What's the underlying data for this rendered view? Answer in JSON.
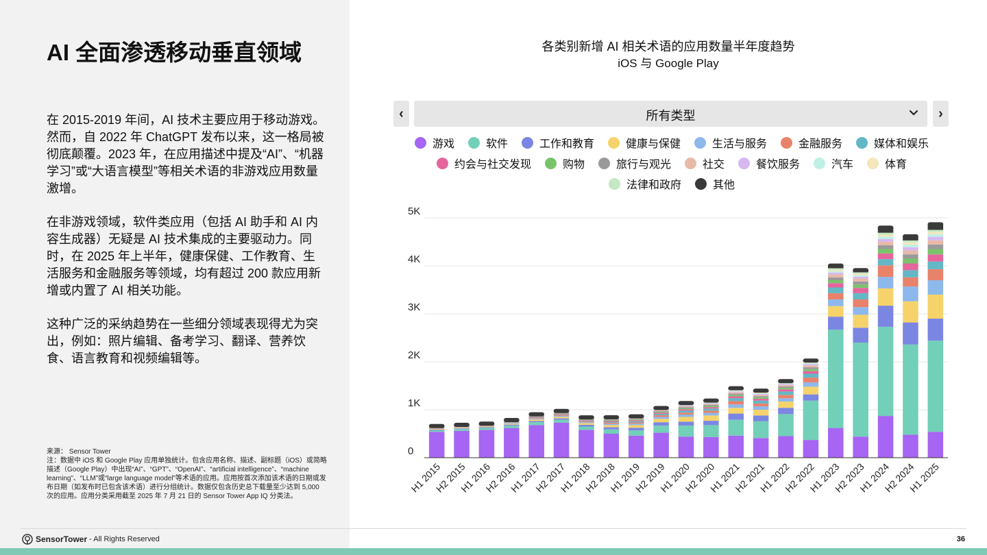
{
  "page": {
    "title": "AI 全面渗透移动垂直领域",
    "paragraphs": [
      "在 2015-2019 年间，AI 技术主要应用于移动游戏。然而，自 2022 年 ChatGPT 发布以来，这一格局被彻底颠覆。2023 年，在应用描述中提及“AI”、“机器学习”或“大语言模型”等相关术语的非游戏应用数量激增。",
      "在非游戏领域，软件类应用（包括 AI 助手和 AI 内容生成器）无疑是 AI 技术集成的主要驱动力。同时，在 2025 年上半年，健康保健、工作教育、生活服务和金融服务等领域，均有超过 200 款应用新增或内置了 AI 相关功能。",
      "这种广泛的采纳趋势在一些细分领域表现得尤为突出，例如：照片编辑、备考学习、翻译、营养饮食、语言教育和视频编辑等。"
    ],
    "source": "来源： Sensor Tower",
    "note": "注：数据中 iOS 和 Google Play 应用单独统计。包含应用名称、描述、副标题（iOS）或简略描述（Google Play）中出现“AI”、“GPT”、“OpenAI”、“artificial intelligence”、“machine learning”、“LLM”或“large language model”等术语的应用。应用按首次添加该术语的日期或发布日期（如发布时已包含该术语）进行分组统计。数据仅包含历史总下载量至少达到 5,000 次的应用。应用分类采用截至 2025 年 7 月 21 日的 Sensor Tower App IQ 分类法。"
  },
  "footer": {
    "brand": "SensorTower",
    "rights": "- All Rights Reserved",
    "page_number": "36"
  },
  "chart_controls": {
    "selected_category": "所有类型",
    "prev_label": "‹",
    "next_label": "›"
  },
  "colors": {
    "accent": "#7fc9b5",
    "axis": "#333333",
    "grid": "#e6e6e6"
  },
  "chart_data": {
    "type": "bar",
    "stacked": true,
    "title": "各类别新增 AI 相关术语的应用数量半年度趋势",
    "subtitle": "iOS 与 Google Play",
    "xlabel": "",
    "ylabel": "",
    "ylim": [
      0,
      5000
    ],
    "yticks": [
      0,
      1000,
      2000,
      3000,
      4000,
      5000
    ],
    "ytick_labels": [
      "0",
      "1K",
      "2K",
      "3K",
      "4K",
      "5K"
    ],
    "grid": true,
    "legend_position": "top",
    "categories": [
      "H1 2015",
      "H2 2015",
      "H1 2016",
      "H2 2016",
      "H1 2017",
      "H2 2017",
      "H1 2018",
      "H2 2018",
      "H1 2019",
      "H2 2019",
      "H1 2020",
      "H2 2020",
      "H1 2021",
      "H2 2021",
      "H1 2022",
      "H2 2022",
      "H1 2023",
      "H2 2023",
      "H1 2024",
      "H2 2024",
      "H1 2025"
    ],
    "series": [
      {
        "name": "游戏",
        "color": "#a665f2",
        "values": [
          540,
          560,
          580,
          620,
          680,
          730,
          580,
          500,
          460,
          520,
          440,
          430,
          460,
          410,
          450,
          370,
          620,
          440,
          870,
          480,
          540
        ]
      },
      {
        "name": "软件",
        "color": "#72cfb8",
        "values": [
          30,
          35,
          40,
          50,
          60,
          60,
          70,
          90,
          110,
          150,
          230,
          250,
          330,
          350,
          460,
          820,
          2050,
          1960,
          1860,
          1880,
          1900
        ]
      },
      {
        "name": "工作和教育",
        "color": "#7b86e2",
        "values": [
          15,
          15,
          15,
          20,
          25,
          30,
          35,
          45,
          55,
          70,
          80,
          90,
          130,
          120,
          130,
          130,
          270,
          310,
          440,
          460,
          460
        ]
      },
      {
        "name": "健康与保健",
        "color": "#f6d36a",
        "values": [
          15,
          15,
          15,
          20,
          30,
          30,
          35,
          45,
          55,
          70,
          100,
          110,
          120,
          120,
          130,
          160,
          220,
          270,
          360,
          440,
          500
        ]
      },
      {
        "name": "生活与服务",
        "color": "#8db8ec",
        "values": [
          10,
          10,
          10,
          15,
          15,
          20,
          20,
          25,
          30,
          40,
          50,
          55,
          70,
          70,
          70,
          90,
          140,
          160,
          240,
          310,
          300
        ]
      },
      {
        "name": "金融服务",
        "color": "#e8826a",
        "values": [
          10,
          10,
          10,
          10,
          15,
          20,
          20,
          25,
          25,
          35,
          40,
          45,
          70,
          60,
          70,
          100,
          130,
          160,
          240,
          190,
          230
        ]
      },
      {
        "name": "媒体和娱乐",
        "color": "#63b7c6",
        "values": [
          8,
          8,
          8,
          10,
          12,
          15,
          15,
          20,
          25,
          30,
          40,
          45,
          60,
          60,
          70,
          80,
          120,
          130,
          130,
          150,
          160
        ]
      },
      {
        "name": "约会与社交发现",
        "color": "#e5659c",
        "values": [
          10,
          10,
          10,
          10,
          15,
          15,
          15,
          20,
          20,
          25,
          30,
          30,
          40,
          40,
          45,
          55,
          90,
          110,
          120,
          140,
          150
        ]
      },
      {
        "name": "购物",
        "color": "#79c46b",
        "values": [
          5,
          5,
          5,
          5,
          10,
          10,
          10,
          15,
          15,
          20,
          25,
          25,
          30,
          30,
          30,
          40,
          60,
          70,
          90,
          100,
          110
        ]
      },
      {
        "name": "旅行与观光",
        "color": "#9a9a9a",
        "values": [
          5,
          5,
          5,
          5,
          10,
          10,
          10,
          10,
          15,
          15,
          20,
          25,
          25,
          25,
          30,
          40,
          60,
          65,
          80,
          90,
          95
        ]
      },
      {
        "name": "社交",
        "color": "#e9b9a8",
        "values": [
          5,
          5,
          5,
          5,
          8,
          10,
          10,
          10,
          15,
          15,
          20,
          20,
          25,
          25,
          30,
          40,
          60,
          60,
          70,
          80,
          85
        ]
      },
      {
        "name": "餐饮服务",
        "color": "#d6b8f0",
        "values": [
          3,
          3,
          3,
          5,
          5,
          5,
          5,
          8,
          8,
          10,
          12,
          15,
          18,
          18,
          20,
          25,
          40,
          40,
          60,
          70,
          75
        ]
      },
      {
        "name": "汽车",
        "color": "#bff0e6",
        "values": [
          3,
          3,
          3,
          5,
          5,
          5,
          5,
          8,
          8,
          10,
          12,
          12,
          15,
          15,
          15,
          20,
          30,
          30,
          50,
          55,
          55
        ]
      },
      {
        "name": "体育",
        "color": "#f5e6bc",
        "values": [
          3,
          3,
          3,
          5,
          5,
          5,
          5,
          8,
          8,
          10,
          12,
          12,
          15,
          15,
          15,
          20,
          30,
          30,
          40,
          45,
          45
        ]
      },
      {
        "name": "法律和政府",
        "color": "#c5e8c2",
        "values": [
          3,
          3,
          3,
          5,
          5,
          5,
          5,
          8,
          8,
          10,
          12,
          12,
          15,
          15,
          15,
          20,
          30,
          30,
          40,
          40,
          45
        ]
      },
      {
        "name": "其他",
        "color": "#3a3a3a",
        "values": [
          10,
          10,
          10,
          10,
          20,
          20,
          15,
          20,
          20,
          20,
          30,
          30,
          40,
          40,
          30,
          30,
          70,
          60,
          120,
          100,
          130
        ]
      }
    ]
  }
}
